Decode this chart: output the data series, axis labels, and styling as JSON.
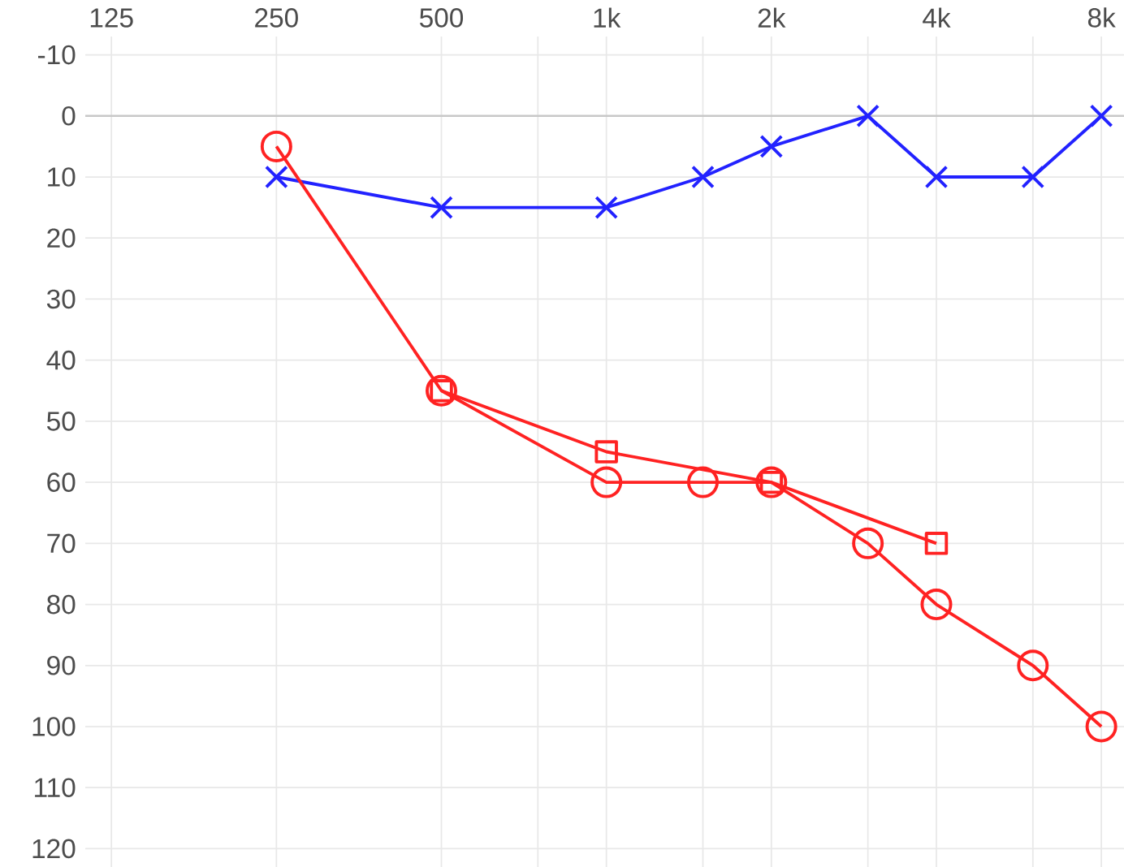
{
  "chart_data": {
    "type": "line",
    "log": "x",
    "x": [
      250,
      500,
      1000,
      1500,
      2000,
      3000,
      4000,
      6000,
      8000
    ],
    "series": [
      {
        "color": "#2222ff",
        "marker": "cross",
        "values": [
          10,
          15,
          15,
          10,
          5,
          0,
          10,
          10,
          0
        ]
      },
      {
        "color": "#ff2222",
        "marker": "circle",
        "values": [
          5,
          45,
          60,
          60,
          60,
          70,
          80,
          90,
          100
        ]
      },
      {
        "color": "#ff2222",
        "marker": "square",
        "x": [
          500,
          1000,
          2000,
          4000
        ],
        "values": [
          45,
          55,
          60,
          70
        ]
      }
    ],
    "xlim": [
      112,
      8800
    ],
    "ylim": [
      123,
      -13
    ],
    "xticks": [
      125,
      250,
      500,
      {
        "value": 750,
        "label": null
      },
      {
        "value": 1000,
        "label": "1k"
      },
      {
        "value": 1500,
        "label": null
      },
      {
        "value": 2000,
        "label": "2k"
      },
      {
        "value": 3000,
        "label": null
      },
      {
        "value": 4000,
        "label": "4k"
      },
      {
        "value": 6000,
        "label": null
      },
      {
        "value": 8000,
        "label": "8k"
      }
    ],
    "yticks": [
      -10,
      0,
      10,
      20,
      30,
      40,
      50,
      60,
      70,
      80,
      90,
      100,
      110,
      120
    ],
    "grid": true,
    "ref_lines": [
      {
        "axis": "y",
        "value": 0,
        "color": "#c8c8c8"
      }
    ]
  }
}
